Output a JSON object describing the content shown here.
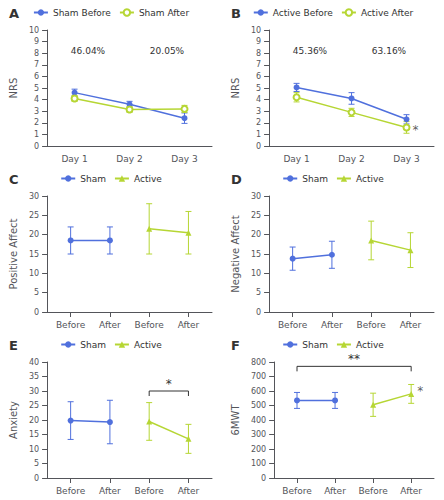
{
  "chart_data": [
    {
      "type": "line",
      "title": "A",
      "ylabel": "NRS",
      "categories": [
        "Day 1",
        "Day 2",
        "Day 3"
      ],
      "ylim": [
        0,
        10
      ],
      "yticks": [
        0,
        1,
        2,
        3,
        4,
        5,
        6,
        7,
        8,
        9,
        10
      ],
      "grid": false,
      "legend": "upper center",
      "series": [
        {
          "name": "Sham Before",
          "marker": "circle",
          "values": [
            4.6,
            3.6,
            2.4
          ],
          "errors": [
            0.3,
            0.25,
            0.45
          ]
        },
        {
          "name": "Sham After",
          "marker": "emptyCircle",
          "values": [
            4.1,
            3.15,
            3.2
          ],
          "errors": [
            0.25,
            0.25,
            0.3
          ]
        }
      ],
      "annotations": [
        {
          "text": "46.04%",
          "series": "Sham Before"
        },
        {
          "text": "20.05%",
          "series": "Sham After"
        }
      ]
    },
    {
      "type": "line",
      "title": "B",
      "ylabel": "NRS",
      "categories": [
        "Day 1",
        "Day 2",
        "Day 3"
      ],
      "ylim": [
        0,
        10
      ],
      "yticks": [
        0,
        1,
        2,
        3,
        4,
        5,
        6,
        7,
        8,
        9,
        10
      ],
      "grid": false,
      "legend": "upper center",
      "series": [
        {
          "name": "Active Before",
          "marker": "circle",
          "values": [
            5.05,
            4.1,
            2.3
          ],
          "errors": [
            0.35,
            0.5,
            0.4
          ]
        },
        {
          "name": "Active After",
          "marker": "emptyCircle",
          "values": [
            4.2,
            2.9,
            1.6
          ],
          "errors": [
            0.4,
            0.35,
            0.5
          ]
        }
      ],
      "annotations": [
        {
          "text": "45.36%",
          "series": "Active Before"
        },
        {
          "text": "63.16%",
          "series": "Active After"
        },
        {
          "text": "*",
          "x": "Day 3",
          "y": 1.4
        }
      ]
    },
    {
      "type": "line",
      "title": "C",
      "ylabel": "Positive Affect",
      "xlim": [
        0.4,
        4.6
      ],
      "xticks": [
        {
          "value": 1,
          "label": "Before"
        },
        {
          "value": 2,
          "label": "After"
        },
        {
          "value": 3,
          "label": "Before"
        },
        {
          "value": 4,
          "label": "After"
        }
      ],
      "ylim": [
        0,
        30
      ],
      "yticks": [
        0,
        5,
        10,
        15,
        20,
        25,
        30
      ],
      "grid": false,
      "legend": "upper center",
      "series": [
        {
          "name": "Sham",
          "marker": "circle",
          "x": [
            1,
            2
          ],
          "values": [
            18.5,
            18.5
          ],
          "errors": [
            3.5,
            3.5
          ]
        },
        {
          "name": "Active",
          "marker": "triangle",
          "x": [
            3,
            4
          ],
          "values": [
            21.5,
            20.5
          ],
          "errors": [
            6.5,
            5.5
          ]
        }
      ]
    },
    {
      "type": "line",
      "title": "D",
      "ylabel": "Negative Affect",
      "xlim": [
        0.4,
        4.6
      ],
      "xticks": [
        {
          "value": 1,
          "label": "Before"
        },
        {
          "value": 2,
          "label": "After"
        },
        {
          "value": 3,
          "label": "Before"
        },
        {
          "value": 4,
          "label": "After"
        }
      ],
      "ylim": [
        0,
        30
      ],
      "yticks": [
        0,
        5,
        10,
        15,
        20,
        25,
        30
      ],
      "grid": false,
      "legend": "upper center",
      "series": [
        {
          "name": "Sham",
          "marker": "circle",
          "x": [
            1,
            2
          ],
          "values": [
            13.8,
            14.8
          ],
          "errors": [
            3.0,
            3.5
          ]
        },
        {
          "name": "Active",
          "marker": "triangle",
          "x": [
            3,
            4
          ],
          "values": [
            18.5,
            16.0
          ],
          "errors": [
            5.0,
            4.5
          ]
        }
      ]
    },
    {
      "type": "line",
      "title": "E",
      "ylabel": "Anxiety",
      "xlim": [
        0.4,
        4.6
      ],
      "xticks": [
        {
          "value": 1,
          "label": "Before"
        },
        {
          "value": 2,
          "label": "After"
        },
        {
          "value": 3,
          "label": "Before"
        },
        {
          "value": 4,
          "label": "After"
        }
      ],
      "ylim": [
        0,
        40
      ],
      "yticks": [
        0,
        5,
        10,
        15,
        20,
        25,
        30,
        35,
        40
      ],
      "grid": false,
      "legend": "upper center",
      "series": [
        {
          "name": "Sham",
          "marker": "circle",
          "x": [
            1,
            2
          ],
          "values": [
            19.8,
            19.3
          ],
          "errors": [
            6.5,
            7.5
          ]
        },
        {
          "name": "Active",
          "marker": "triangle",
          "x": [
            3,
            4
          ],
          "values": [
            19.5,
            13.5
          ],
          "errors": [
            6.5,
            5.0
          ]
        }
      ],
      "annotations": [
        {
          "text": "*",
          "bracket": [
            3,
            4
          ],
          "y": 30.0
        }
      ]
    },
    {
      "type": "line",
      "title": "F",
      "ylabel": "6MWT",
      "xlim": [
        0.4,
        4.6
      ],
      "xticks": [
        {
          "value": 1,
          "label": "Before"
        },
        {
          "value": 2,
          "label": "After"
        },
        {
          "value": 3,
          "label": "Before"
        },
        {
          "value": 4,
          "label": "After"
        }
      ],
      "ylim": [
        0,
        800
      ],
      "yticks": [
        0,
        100,
        200,
        300,
        400,
        500,
        600,
        700,
        800
      ],
      "grid": false,
      "legend": "upper center",
      "series": [
        {
          "name": "Sham",
          "marker": "circle",
          "x": [
            1,
            2
          ],
          "values": [
            535,
            535
          ],
          "errors": [
            55,
            55
          ]
        },
        {
          "name": "Active",
          "marker": "triangle",
          "x": [
            3,
            4
          ],
          "values": [
            505,
            580
          ],
          "errors": [
            80,
            65
          ]
        }
      ],
      "annotations": [
        {
          "text": "**",
          "bracket": [
            1,
            4
          ],
          "y": 770
        },
        {
          "text": "*",
          "x": 4,
          "y": 600
        }
      ]
    }
  ]
}
